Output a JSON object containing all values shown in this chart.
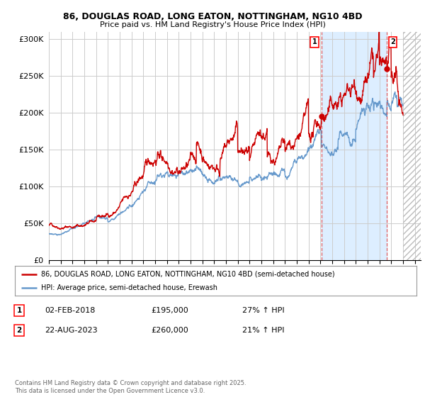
{
  "title_line1": "86, DOUGLAS ROAD, LONG EATON, NOTTINGHAM, NG10 4BD",
  "title_line2": "Price paid vs. HM Land Registry's House Price Index (HPI)",
  "xlim_start": 1995.0,
  "xlim_end": 2026.5,
  "ylim": [
    0,
    310000
  ],
  "yticks": [
    0,
    50000,
    100000,
    150000,
    200000,
    250000,
    300000
  ],
  "ytick_labels": [
    "£0",
    "£50K",
    "£100K",
    "£150K",
    "£200K",
    "£250K",
    "£300K"
  ],
  "red_color": "#cc0000",
  "blue_color": "#6699cc",
  "shade_color": "#ddeeff",
  "hatch_color": "#cccccc",
  "marker1_date": 2018.09,
  "marker1_price": 195000,
  "marker1_label": "1",
  "marker2_date": 2023.64,
  "marker2_price": 260000,
  "marker2_label": "2",
  "future_start": 2025.0,
  "legend_red_label": "86, DOUGLAS ROAD, LONG EATON, NOTTINGHAM, NG10 4BD (semi-detached house)",
  "legend_blue_label": "HPI: Average price, semi-detached house, Erewash",
  "note1_num": "1",
  "note1_date": "02-FEB-2018",
  "note1_price": "£195,000",
  "note1_pct": "27% ↑ HPI",
  "note2_num": "2",
  "note2_date": "22-AUG-2023",
  "note2_price": "£260,000",
  "note2_pct": "21% ↑ HPI",
  "footer": "Contains HM Land Registry data © Crown copyright and database right 2025.\nThis data is licensed under the Open Government Licence v3.0.",
  "bg_color": "#ffffff",
  "grid_color": "#cccccc"
}
